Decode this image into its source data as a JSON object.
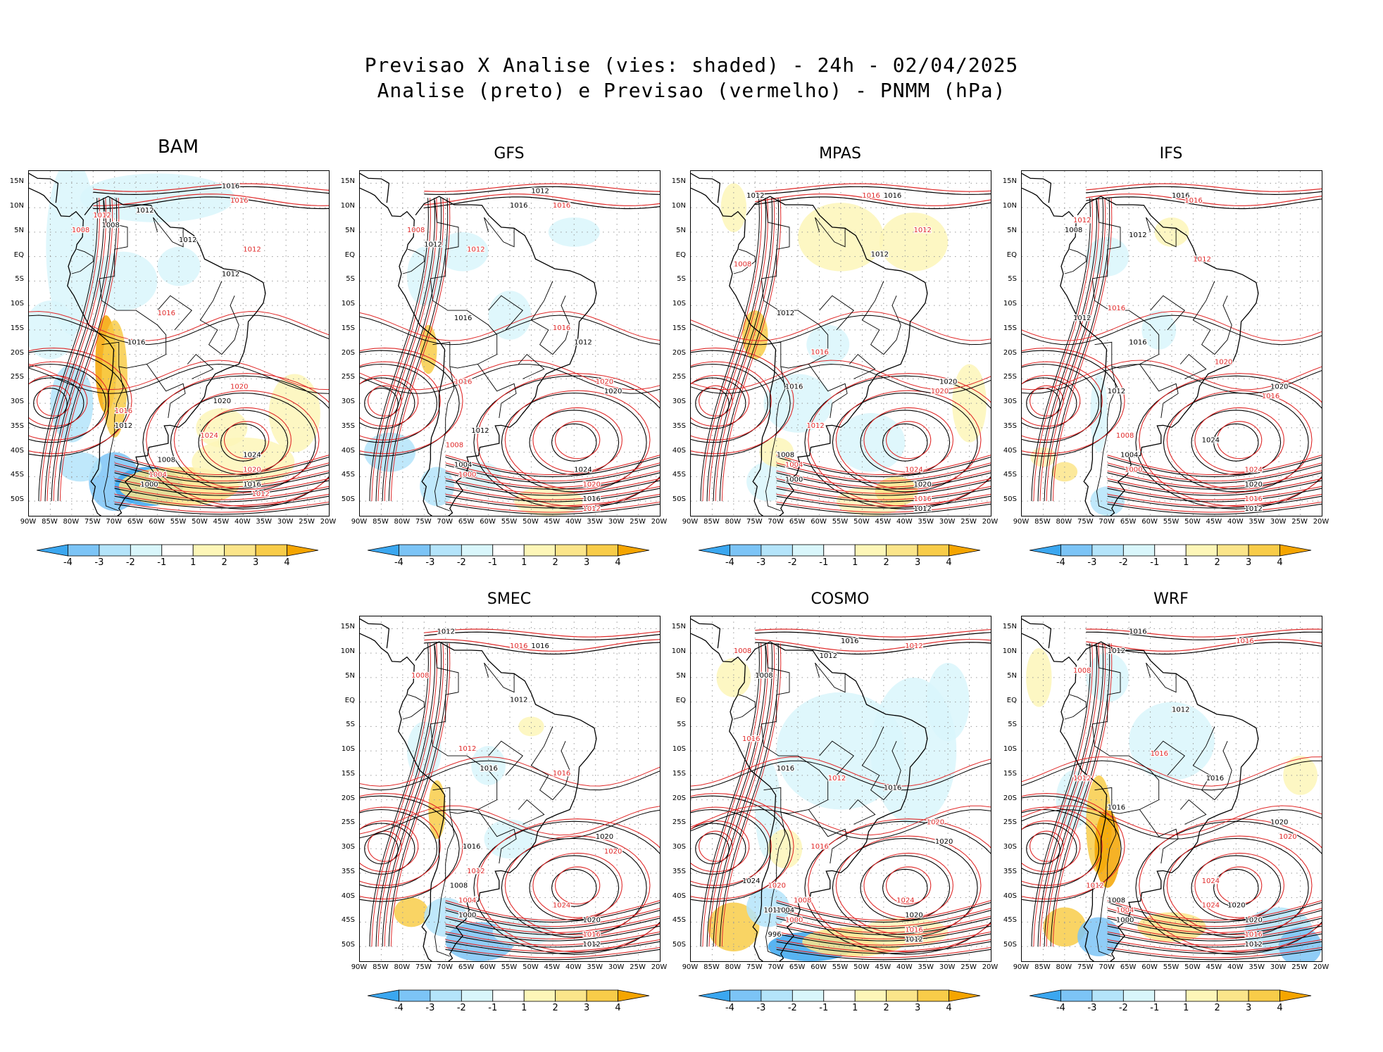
{
  "title_line1": "Previsao X Analise (vies: shaded) - 24h - 02/04/2025",
  "title_line2": "Analise (preto) e Previsao (vermelho) - PNMM (hPa)",
  "lat_labels": [
    "15N",
    "10N",
    "5N",
    "EQ",
    "5S",
    "10S",
    "15S",
    "20S",
    "25S",
    "30S",
    "35S",
    "40S",
    "45S",
    "50S"
  ],
  "lon_labels": [
    "90W",
    "85W",
    "80W",
    "75W",
    "70W",
    "65W",
    "60W",
    "55W",
    "50W",
    "45W",
    "40W",
    "35W",
    "30W",
    "25W",
    "20W"
  ],
  "colorbar": {
    "labels": [
      "-4",
      "-3",
      "-2",
      "-1",
      "1",
      "2",
      "3",
      "4"
    ],
    "colors": [
      "#3ba7f0",
      "#7cc4f6",
      "#b4e4fa",
      "#d9f6fb",
      "#ffffff",
      "#fdf6b8",
      "#fbe58a",
      "#f8cc49",
      "#f5a500"
    ]
  },
  "colors": {
    "analysis": "#000000",
    "forecast": "#e02a2a",
    "coast": "#000000",
    "grid": "#9a9a9a"
  },
  "panels": [
    {
      "name": "BAM",
      "labels": [
        "1016",
        "1016",
        "1012",
        "1012",
        "1008",
        "1008",
        "1012",
        "1012",
        "1012",
        "1016",
        "1016",
        "1020",
        "1020",
        "1024",
        "1024",
        "1020",
        "1016",
        "1012",
        "1008",
        "1004",
        "1000",
        "1016",
        "1012"
      ]
    },
    {
      "name": "GFS",
      "labels": [
        "1012",
        "1016",
        "1016",
        "1008",
        "1012",
        "1012",
        "1016",
        "1016",
        "1012",
        "1020",
        "1020",
        "1016",
        "1012",
        "1008",
        "1004",
        "1000",
        "1024",
        "1020",
        "1016",
        "1012"
      ]
    },
    {
      "name": "MPAS",
      "labels": [
        "1012",
        "1016",
        "1016",
        "1012",
        "1012",
        "1008",
        "1012",
        "1016",
        "1020",
        "1020",
        "1016",
        "1012",
        "1008",
        "1004",
        "1000",
        "1024",
        "1020",
        "1016",
        "1012"
      ]
    },
    {
      "name": "IFS",
      "labels": [
        "1008",
        "1012",
        "1016",
        "1016",
        "1012",
        "1012",
        "1012",
        "1016",
        "1016",
        "1020",
        "1020",
        "1016",
        "1012",
        "1008",
        "1004",
        "1000",
        "1024",
        "1024",
        "1020",
        "1016",
        "1012"
      ]
    },
    {
      "name": "SMEC",
      "labels": [
        "1012",
        "1016",
        "1016",
        "1008",
        "1012",
        "1012",
        "1016",
        "1016",
        "1020",
        "1020",
        "1016",
        "1012",
        "1008",
        "1004",
        "1000",
        "1024",
        "1020",
        "1016",
        "1012"
      ]
    },
    {
      "name": "COSMO",
      "labels": [
        "1016",
        "1012",
        "1012",
        "1008",
        "1008",
        "1016",
        "1016",
        "1012",
        "1016",
        "1020",
        "1020",
        "1016",
        "1024",
        "1020",
        "1012",
        "1008",
        "1004",
        "1000",
        "996",
        "1024",
        "1020",
        "1016",
        "1012"
      ]
    },
    {
      "name": "WRF",
      "labels": [
        "1016",
        "1016",
        "1012",
        "1008",
        "1012",
        "1016",
        "1016",
        "1012",
        "1020",
        "1020",
        "1016",
        "1024",
        "1020",
        "1012",
        "1008",
        "1004",
        "1000",
        "1024",
        "1020",
        "1016",
        "1012"
      ]
    }
  ]
}
